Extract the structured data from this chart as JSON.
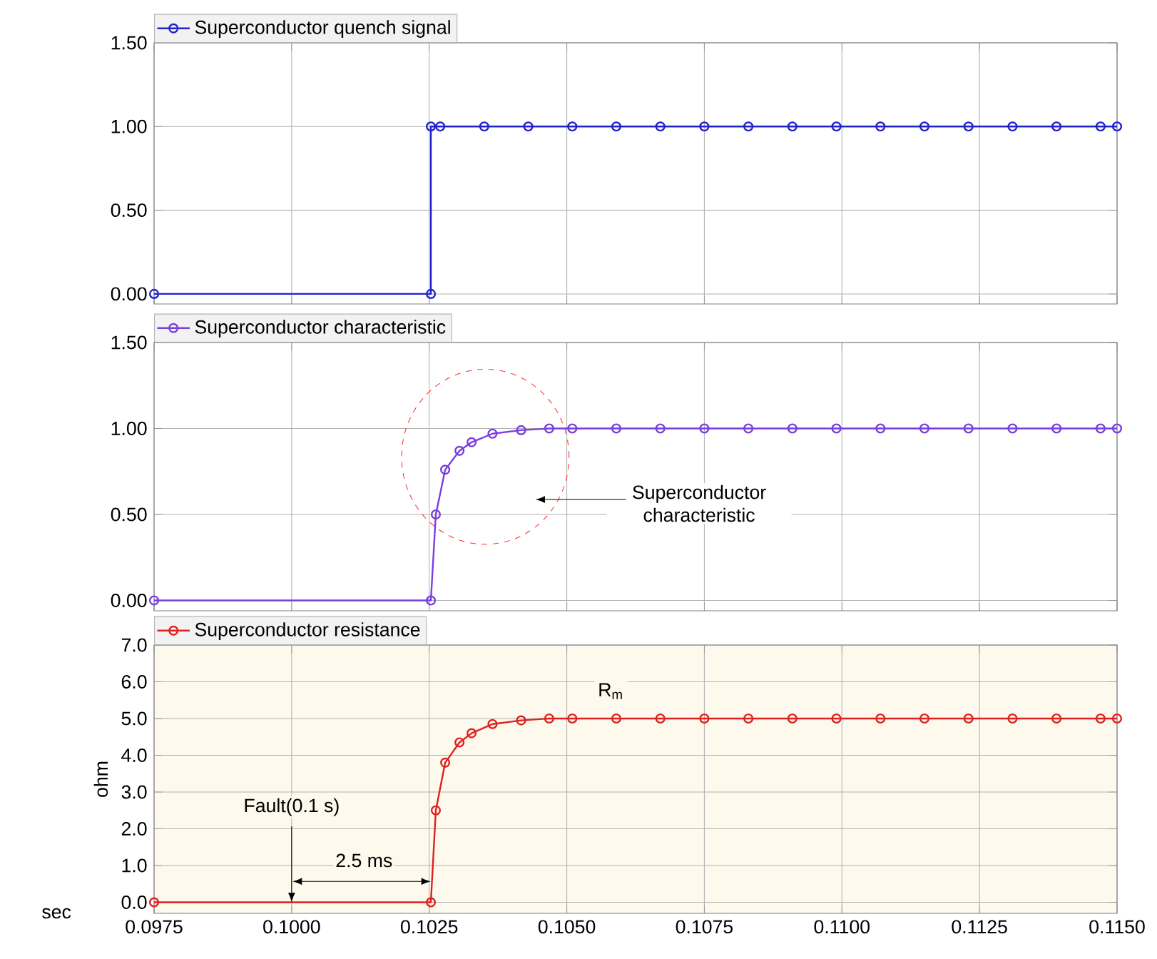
{
  "chart_data": [
    {
      "type": "line",
      "x": [
        0.0975,
        0.10253,
        0.10253,
        0.1027,
        0.1035,
        0.1043,
        0.1051,
        0.1059,
        0.1067,
        0.1075,
        0.1083,
        0.1091,
        0.1099,
        0.1107,
        0.1115,
        0.1123,
        0.1131,
        0.1139,
        0.1147,
        0.115
      ],
      "series": [
        {
          "name": "Superconductor quench signal",
          "color": "#2222cc",
          "values": [
            0,
            0,
            1,
            1,
            1,
            1,
            1,
            1,
            1,
            1,
            1,
            1,
            1,
            1,
            1,
            1,
            1,
            1,
            1,
            1
          ]
        }
      ],
      "xlim": [
        0.0975,
        0.115
      ],
      "ylim": [
        -0.06,
        1.5
      ],
      "xticks": [
        0.0975,
        0.1,
        0.1025,
        0.105,
        0.1075,
        0.11,
        0.1125,
        0.115
      ],
      "yticks": [
        {
          "value": 0,
          "label": "0.00"
        },
        {
          "value": 0.5,
          "label": "0.50"
        },
        {
          "value": 1,
          "label": "1.00"
        },
        {
          "value": 1.5,
          "label": "1.50"
        }
      ],
      "tick_labels": "y",
      "grid": true,
      "legend": "top left",
      "marker": "circle"
    },
    {
      "type": "line",
      "x": [
        0.0975,
        0.10253,
        0.10262,
        0.10279,
        0.10305,
        0.10327,
        0.10365,
        0.10417,
        0.10468,
        0.1051,
        0.1059,
        0.1067,
        0.1075,
        0.1083,
        0.1091,
        0.1099,
        0.1107,
        0.1115,
        0.1123,
        0.1131,
        0.1139,
        0.1147,
        0.115
      ],
      "series": [
        {
          "name": "Superconductor characteristic",
          "color": "#7a3ee0",
          "values": [
            0,
            0,
            0.5,
            0.76,
            0.87,
            0.92,
            0.97,
            0.99,
            1,
            1,
            1,
            1,
            1,
            1,
            1,
            1,
            1,
            1,
            1,
            1,
            1,
            1,
            1
          ]
        }
      ],
      "xlim": [
        0.0975,
        0.115
      ],
      "ylim": [
        -0.06,
        1.5
      ],
      "xticks": [
        0.0975,
        0.1,
        0.1025,
        0.105,
        0.1075,
        0.11,
        0.1125,
        0.115
      ],
      "yticks": [
        {
          "value": 0,
          "label": "0.00"
        },
        {
          "value": 0.5,
          "label": "0.50"
        },
        {
          "value": 1,
          "label": "1.00"
        },
        {
          "value": 1.5,
          "label": "1.50"
        }
      ],
      "annotations": [
        "Superconductor characteristic"
      ],
      "tick_labels": "y",
      "grid": true,
      "legend": "top left",
      "marker": "circle"
    },
    {
      "type": "line",
      "x": [
        0.0975,
        0.10253,
        0.10262,
        0.10279,
        0.10305,
        0.10327,
        0.10365,
        0.10417,
        0.10468,
        0.1051,
        0.1059,
        0.1067,
        0.1075,
        0.1083,
        0.1091,
        0.1099,
        0.1107,
        0.1115,
        0.1123,
        0.1131,
        0.1139,
        0.1147,
        0.115
      ],
      "series": [
        {
          "name": "Superconductor resistance",
          "color": "#e02020",
          "values": [
            0,
            0,
            2.5,
            3.8,
            4.35,
            4.6,
            4.85,
            4.95,
            5,
            5,
            5,
            5,
            5,
            5,
            5,
            5,
            5,
            5,
            5,
            5,
            5,
            5,
            5
          ]
        }
      ],
      "xlabel": "sec",
      "ylabel": "ohm",
      "xlim": [
        0.0975,
        0.115
      ],
      "ylim": [
        -0.3,
        7
      ],
      "xticks": [
        {
          "value": 0.0975,
          "label": "0.0975"
        },
        {
          "value": 0.1,
          "label": "0.1000"
        },
        {
          "value": 0.1025,
          "label": "0.1025"
        },
        {
          "value": 0.105,
          "label": "0.1050"
        },
        {
          "value": 0.1075,
          "label": "0.1075"
        },
        {
          "value": 0.11,
          "label": "0.1100"
        },
        {
          "value": 0.1125,
          "label": "0.1125"
        },
        {
          "value": 0.115,
          "label": "0.1150"
        }
      ],
      "yticks": [
        {
          "value": 0,
          "label": "0.0"
        },
        {
          "value": 1,
          "label": "1.0"
        },
        {
          "value": 2,
          "label": "2.0"
        },
        {
          "value": 3,
          "label": "3.0"
        },
        {
          "value": 4,
          "label": "4.0"
        },
        {
          "value": 5,
          "label": "5.0"
        },
        {
          "value": 6,
          "label": "6.0"
        },
        {
          "value": 7,
          "label": "7.0"
        }
      ],
      "annotations": [
        {
          "text": "Fault(0.1 s)",
          "x": 0.1,
          "y": 0
        },
        "2.5 ms",
        {
          "text": "R$_{m}$",
          "x": 0.1058,
          "y": 5
        }
      ],
      "grid": true,
      "legend": "top left",
      "marker": "circle"
    }
  ]
}
